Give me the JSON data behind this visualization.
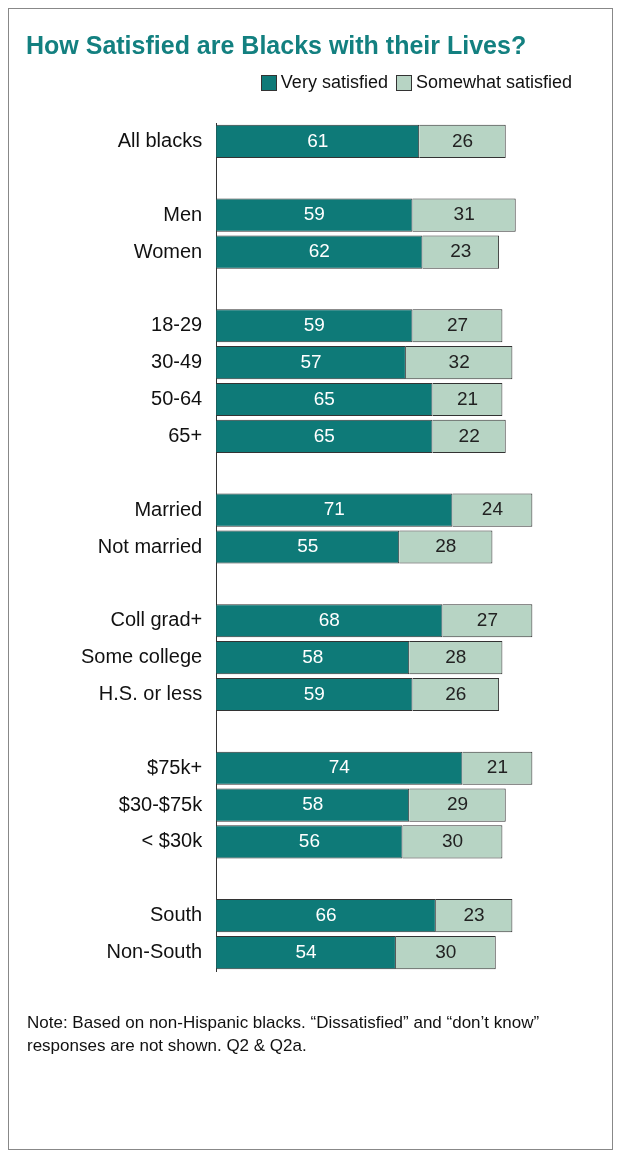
{
  "chart_data": {
    "type": "bar",
    "orientation": "horizontal",
    "stacked": true,
    "title": "How Satisfied are Blacks with their Lives?",
    "categories": [
      "All blacks",
      null,
      "Men",
      "Women",
      null,
      "18-29",
      "30-49",
      "50-64",
      "65+",
      null,
      "Married",
      "Not married",
      null,
      "Coll grad+",
      "Some college",
      "H.S. or less",
      null,
      "$75k+",
      "$30-$75k",
      "< $30k",
      null,
      "South",
      "Non-South"
    ],
    "series": [
      {
        "name": "Very satisfied",
        "color": "#0e7a78",
        "values": [
          61,
          null,
          59,
          62,
          null,
          59,
          57,
          65,
          65,
          null,
          71,
          55,
          null,
          68,
          58,
          59,
          null,
          74,
          58,
          56,
          null,
          66,
          54
        ]
      },
      {
        "name": "Somewhat satisfied",
        "color": "#b7d4c4",
        "values": [
          26,
          null,
          31,
          23,
          null,
          27,
          32,
          21,
          22,
          null,
          24,
          28,
          null,
          27,
          28,
          26,
          null,
          21,
          29,
          30,
          null,
          23,
          30
        ]
      }
    ],
    "data_labels": true,
    "legend": "top right",
    "annotations": [
      "Note: Based on non-Hispanic blacks. “Dissatisfied” and “don’t know” responses are not shown. Q2 & Q2a."
    ]
  }
}
